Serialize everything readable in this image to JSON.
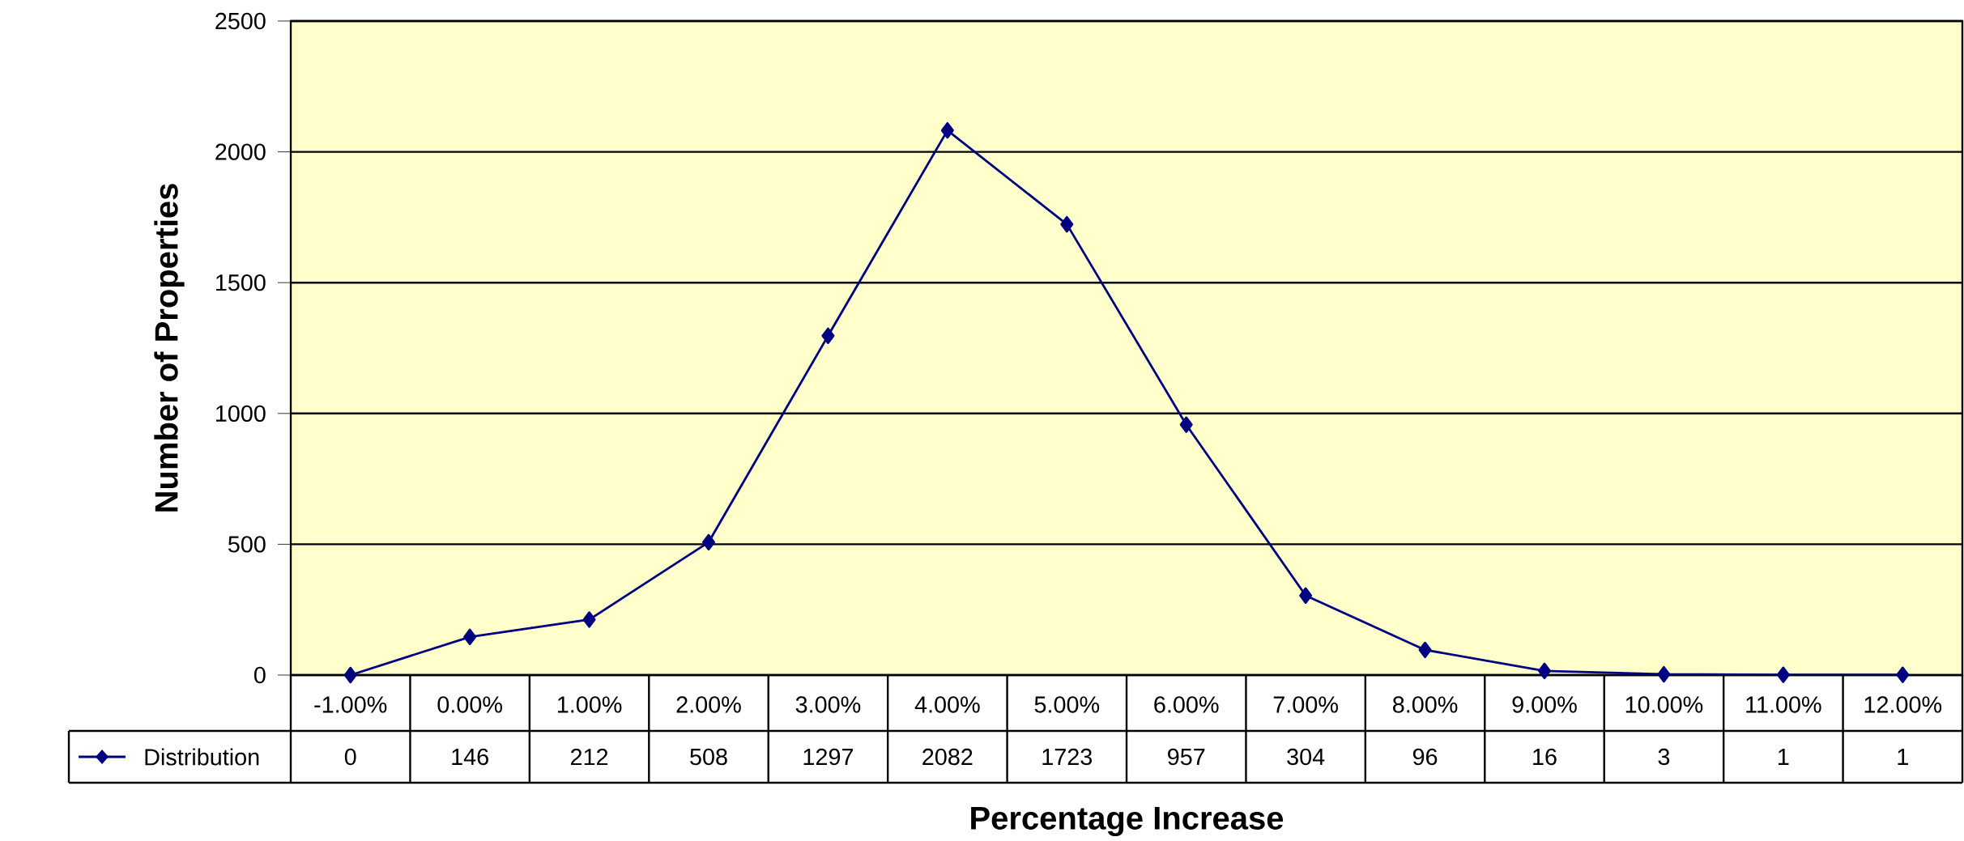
{
  "chart_data": {
    "type": "line",
    "xlabel": "Percentage Increase",
    "ylabel": "Number of Properties",
    "categories": [
      "-1.00%",
      "0.00%",
      "1.00%",
      "2.00%",
      "3.00%",
      "4.00%",
      "5.00%",
      "6.00%",
      "7.00%",
      "8.00%",
      "9.00%",
      "10.00%",
      "11.00%",
      "12.00%"
    ],
    "series": [
      {
        "name": "Distribution",
        "color": "#000080",
        "values": [
          0,
          146,
          212,
          508,
          1297,
          2082,
          1723,
          957,
          304,
          96,
          16,
          3,
          1,
          1
        ]
      }
    ],
    "ylim": [
      0,
      2500
    ],
    "yticks": [
      0,
      500,
      1000,
      1500,
      2000,
      2500
    ],
    "grid": "y",
    "legend": "bottom",
    "marker": "diamond",
    "line_style": "solid",
    "data_labels": true
  }
}
